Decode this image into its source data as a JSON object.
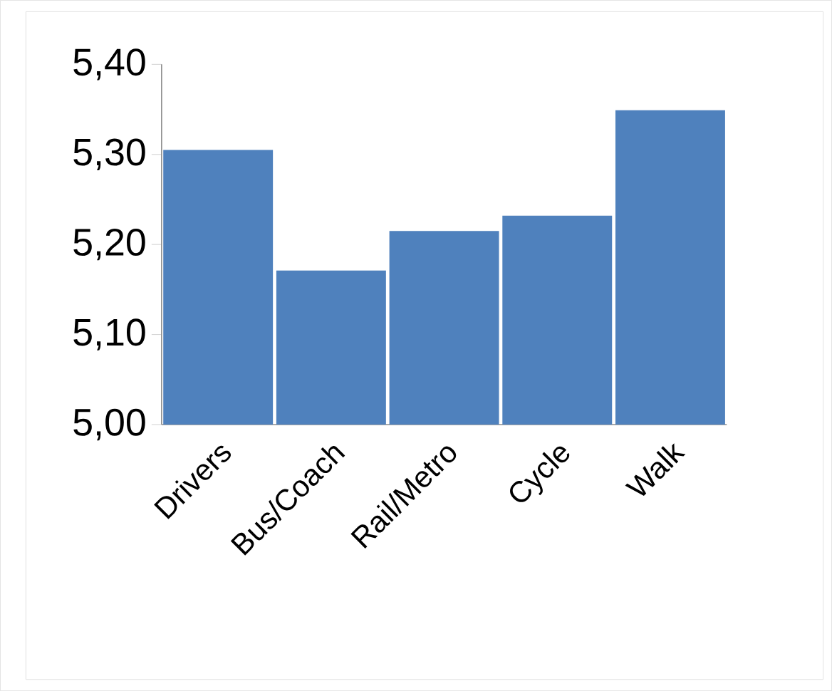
{
  "chart_data": {
    "type": "bar",
    "categories": [
      "Drivers",
      "Bus/Coach",
      "Rail/Metro",
      "Cycle",
      "Walk"
    ],
    "values": [
      5.305,
      5.171,
      5.215,
      5.232,
      5.349
    ],
    "color": "#4f81bd",
    "ylim": [
      5.0,
      5.4
    ],
    "yticks": [
      {
        "value": 5.0,
        "label": "5,00"
      },
      {
        "value": 5.1,
        "label": "5,10"
      },
      {
        "value": 5.2,
        "label": "5,20"
      },
      {
        "value": 5.3,
        "label": "5,30"
      },
      {
        "value": 5.4,
        "label": "5,40"
      }
    ]
  }
}
